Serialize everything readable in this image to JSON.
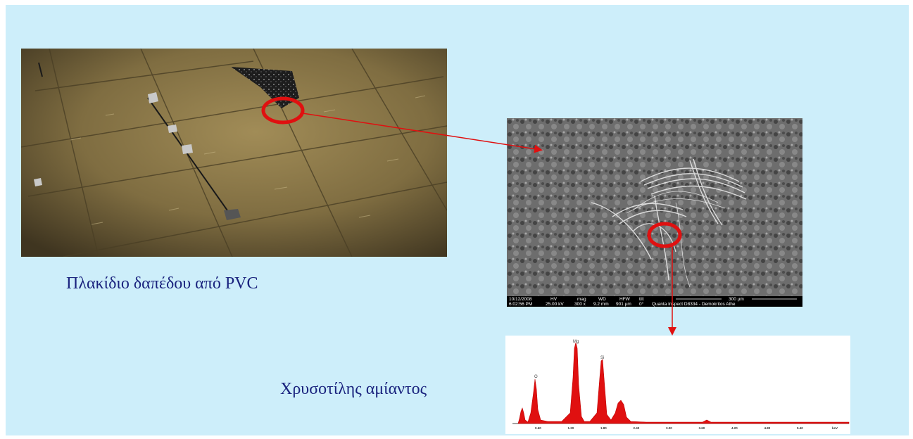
{
  "captions": {
    "pvc_tile": "Πλακίδιο δαπέδου από PVC",
    "chrysotile": "Χρυσοτίλης αμίαντος"
  },
  "sem_image": {
    "databar": {
      "date": "10/12/2008",
      "time": "6:02:56 PM",
      "hv_label": "HV",
      "hv": "25.00 kV",
      "mag_label": "mag",
      "mag": "300 x",
      "wd_label": "WD",
      "wd": "9.2 mm",
      "hfw_label": "HFW",
      "hfw": "901 µm",
      "tilt_label": "tilt",
      "tilt": "0°",
      "scale": "300 µm",
      "instrument": "Quanta Inspect D8334 - Demokritos Athe"
    }
  },
  "edx_spectrum": {
    "peak_labels": [
      "O",
      "Mg",
      "Si"
    ],
    "x_ticks": [
      "0.60",
      "1.20",
      "1.80",
      "2.40",
      "3.00",
      "3.60",
      "4.20",
      "4.80",
      "5.40"
    ],
    "x_unit": "keV"
  },
  "colors": {
    "slide_background": "#cdeefa",
    "caption_text": "#1a237e",
    "marker_red": "#e01010",
    "spectrum_red": "#e01010"
  }
}
